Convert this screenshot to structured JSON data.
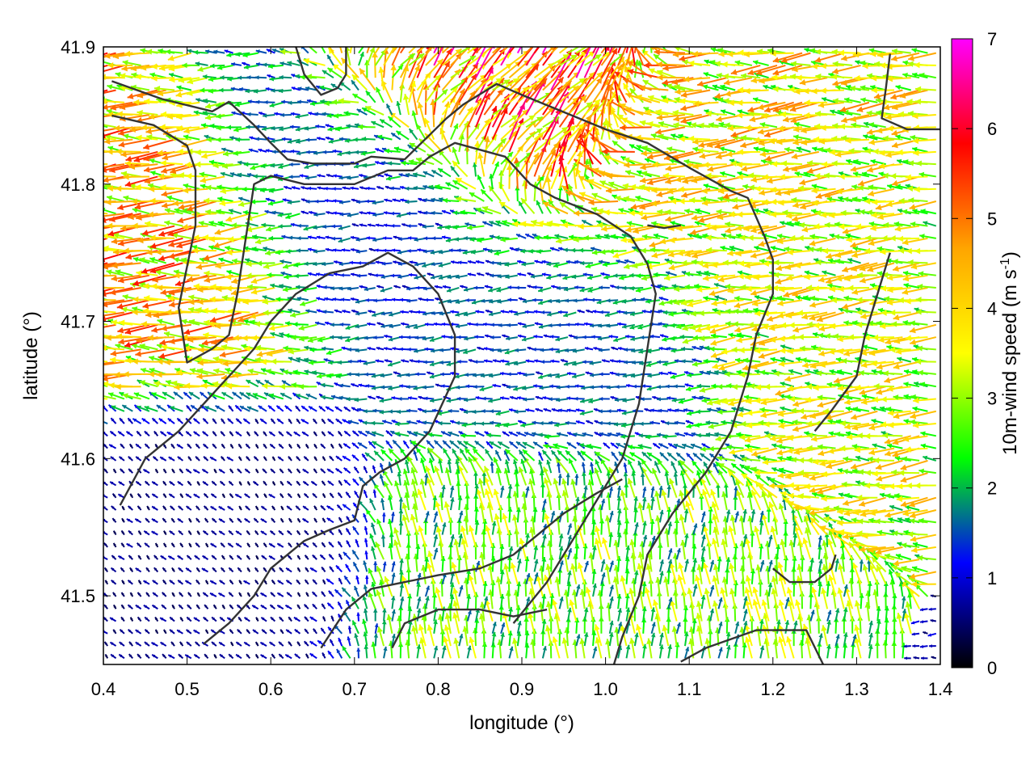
{
  "chart_data": {
    "type": "vector-field",
    "title": "",
    "xlabel": "longitude (°)",
    "ylabel": "latitude (°)",
    "xlim": [
      0.4,
      1.4
    ],
    "ylim": [
      41.45,
      41.9
    ],
    "xticks": [
      "0.4",
      "0.5",
      "0.6",
      "0.7",
      "0.8",
      "0.9",
      "1.0",
      "1.1",
      "1.2",
      "1.3",
      "1.4"
    ],
    "yticks": [
      "41.5",
      "41.6",
      "41.7",
      "41.8",
      "41.9"
    ],
    "xtick_values": [
      0.4,
      0.5,
      0.6,
      0.7,
      0.8,
      0.9,
      1.0,
      1.1,
      1.2,
      1.3,
      1.4
    ],
    "ytick_values": [
      41.5,
      41.6,
      41.7,
      41.8,
      41.9
    ],
    "colorbar": {
      "label": "10m-wind speed (m s",
      "label_superscript": "-1",
      "label_suffix": ")",
      "range": [
        0,
        7
      ],
      "ticks": [
        "0",
        "1",
        "2",
        "3",
        "4",
        "5",
        "6",
        "7"
      ],
      "tick_values": [
        0,
        1,
        2,
        3,
        4,
        5,
        6,
        7
      ],
      "colors": [
        "#000000",
        "#0000ff",
        "#00ff00",
        "#ffff00",
        "#ffa500",
        "#ff0000",
        "#ff00ff"
      ]
    },
    "contours": [
      [
        [
          0.41,
          41.875
        ],
        [
          0.47,
          41.862
        ],
        [
          0.53,
          41.853
        ],
        [
          0.55,
          41.86
        ],
        [
          0.58,
          41.843
        ],
        [
          0.6,
          41.83
        ],
        [
          0.62,
          41.818
        ],
        [
          0.65,
          41.815
        ],
        [
          0.7,
          41.815
        ],
        [
          0.72,
          41.82
        ],
        [
          0.76,
          41.818
        ],
        [
          0.78,
          41.83
        ],
        [
          0.81,
          41.848
        ],
        [
          0.83,
          41.858
        ],
        [
          0.87,
          41.873
        ],
        [
          0.9,
          41.865
        ],
        [
          0.94,
          41.855
        ],
        [
          1.0,
          41.84
        ],
        [
          1.05,
          41.83
        ],
        [
          1.1,
          41.812
        ],
        [
          1.15,
          41.795
        ],
        [
          1.17,
          41.79
        ],
        [
          1.19,
          41.762
        ],
        [
          1.2,
          41.745
        ],
        [
          1.2,
          41.72
        ],
        [
          1.18,
          41.69
        ],
        [
          1.17,
          41.66
        ],
        [
          1.15,
          41.62
        ],
        [
          1.12,
          41.59
        ],
        [
          1.08,
          41.56
        ],
        [
          1.05,
          41.53
        ],
        [
          1.04,
          41.5
        ],
        [
          1.02,
          41.47
        ],
        [
          1.01,
          41.45
        ]
      ],
      [
        [
          0.41,
          41.85
        ],
        [
          0.46,
          41.843
        ],
        [
          0.5,
          41.828
        ],
        [
          0.51,
          41.81
        ],
        [
          0.51,
          41.77
        ],
        [
          0.5,
          41.74
        ],
        [
          0.49,
          41.71
        ],
        [
          0.5,
          41.67
        ],
        [
          0.53,
          41.68
        ],
        [
          0.55,
          41.69
        ],
        [
          0.56,
          41.72
        ],
        [
          0.57,
          41.76
        ],
        [
          0.58,
          41.8
        ],
        [
          0.6,
          41.806
        ],
        [
          0.64,
          41.8
        ],
        [
          0.7,
          41.8
        ],
        [
          0.74,
          41.81
        ],
        [
          0.77,
          41.81
        ],
        [
          0.79,
          41.82
        ],
        [
          0.82,
          41.83
        ],
        [
          0.85,
          41.825
        ],
        [
          0.88,
          41.82
        ],
        [
          0.91,
          41.8
        ],
        [
          0.94,
          41.79
        ],
        [
          0.99,
          41.778
        ],
        [
          1.03,
          41.762
        ],
        [
          1.05,
          41.742
        ],
        [
          1.06,
          41.72
        ],
        [
          1.05,
          41.68
        ],
        [
          1.04,
          41.64
        ],
        [
          1.02,
          41.6
        ],
        [
          0.99,
          41.57
        ],
        [
          0.96,
          41.54
        ],
        [
          0.93,
          41.51
        ],
        [
          0.89,
          41.48
        ]
      ],
      [
        [
          0.42,
          41.566
        ],
        [
          0.45,
          41.6
        ],
        [
          0.49,
          41.62
        ],
        [
          0.52,
          41.64
        ],
        [
          0.55,
          41.66
        ],
        [
          0.58,
          41.68
        ],
        [
          0.6,
          41.7
        ],
        [
          0.63,
          41.72
        ],
        [
          0.67,
          41.735
        ],
        [
          0.71,
          41.74
        ],
        [
          0.74,
          41.75
        ],
        [
          0.77,
          41.74
        ],
        [
          0.8,
          41.72
        ],
        [
          0.82,
          41.69
        ],
        [
          0.82,
          41.66
        ],
        [
          0.79,
          41.62
        ],
        [
          0.76,
          41.6
        ],
        [
          0.73,
          41.59
        ],
        [
          0.71,
          41.58
        ],
        [
          0.7,
          41.555
        ],
        [
          0.67,
          41.548
        ],
        [
          0.64,
          41.54
        ],
        [
          0.62,
          41.53
        ],
        [
          0.6,
          41.52
        ],
        [
          0.58,
          41.5
        ],
        [
          0.55,
          41.48
        ],
        [
          0.52,
          41.465
        ]
      ],
      [
        [
          0.66,
          41.462
        ],
        [
          0.69,
          41.49
        ],
        [
          0.72,
          41.505
        ],
        [
          0.76,
          41.51
        ],
        [
          0.8,
          41.515
        ],
        [
          0.85,
          41.52
        ],
        [
          0.89,
          41.53
        ],
        [
          0.92,
          41.545
        ],
        [
          0.95,
          41.56
        ],
        [
          0.99,
          41.575
        ],
        [
          1.02,
          41.585
        ]
      ],
      [
        [
          0.745,
          41.462
        ],
        [
          0.76,
          41.48
        ],
        [
          0.8,
          41.49
        ],
        [
          0.85,
          41.49
        ],
        [
          0.89,
          41.485
        ],
        [
          0.93,
          41.49
        ]
      ],
      [
        [
          0.63,
          41.9
        ],
        [
          0.64,
          41.88
        ],
        [
          0.66,
          41.865
        ],
        [
          0.68,
          41.87
        ],
        [
          0.69,
          41.88
        ],
        [
          0.69,
          41.9
        ]
      ],
      [
        [
          1.09,
          41.452
        ],
        [
          1.12,
          41.462
        ],
        [
          1.18,
          41.475
        ],
        [
          1.24,
          41.475
        ],
        [
          1.26,
          41.45
        ]
      ],
      [
        [
          1.34,
          41.895
        ],
        [
          1.335,
          41.87
        ],
        [
          1.33,
          41.848
        ],
        [
          1.36,
          41.84
        ],
        [
          1.4,
          41.84
        ]
      ],
      [
        [
          1.34,
          41.75
        ],
        [
          1.325,
          41.72
        ],
        [
          1.31,
          41.69
        ],
        [
          1.3,
          41.66
        ],
        [
          1.27,
          41.635
        ],
        [
          1.25,
          41.62
        ]
      ],
      [
        [
          1.2,
          41.52
        ],
        [
          1.22,
          41.51
        ],
        [
          1.25,
          41.51
        ],
        [
          1.27,
          41.52
        ],
        [
          1.275,
          41.53
        ]
      ],
      [
        [
          1.05,
          41.77
        ],
        [
          1.07,
          41.768
        ],
        [
          1.09,
          41.77
        ]
      ]
    ],
    "wind_field": {
      "grid_spacing_deg": [
        0.01,
        0.009
      ],
      "regions": [
        {
          "description_speed_ms": 1.2,
          "center": [
            0.72,
            41.78
          ],
          "direction": "west"
        },
        {
          "description_speed_ms": 4.2,
          "center": [
            0.47,
            41.74
          ],
          "direction": "west"
        },
        {
          "description_speed_ms": 3.6,
          "center": [
            1.13,
            41.82
          ],
          "direction": "west"
        },
        {
          "description_speed_ms": 3.3,
          "center": [
            1.28,
            41.72
          ],
          "direction": "west"
        },
        {
          "description_speed_ms": 1.4,
          "center": [
            0.95,
            41.68
          ],
          "direction": "west"
        },
        {
          "description_speed_ms": 0.6,
          "center": [
            0.5,
            41.55
          ],
          "direction": "north-west"
        },
        {
          "description_speed_ms": 2.6,
          "center": [
            0.93,
            41.52
          ],
          "direction": "north"
        },
        {
          "description_speed_ms": 5.0,
          "center": [
            0.9,
            41.865
          ],
          "direction": "north-east"
        }
      ]
    }
  }
}
